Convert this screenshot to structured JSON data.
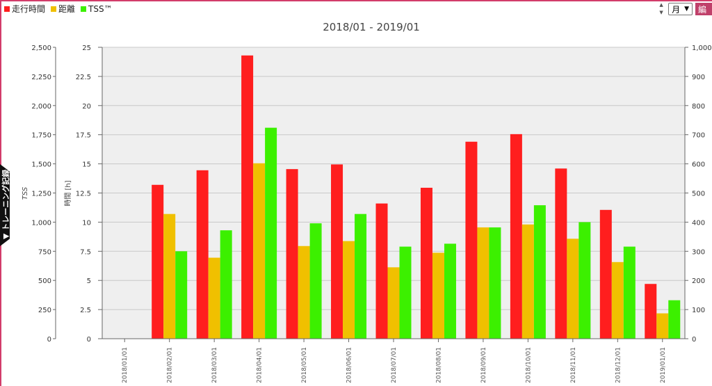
{
  "legend": [
    {
      "label": "走行時間",
      "color": "#ff1e1e"
    },
    {
      "label": "距離",
      "color": "#f0c000"
    },
    {
      "label": "TSS™",
      "color": "#3cf000"
    }
  ],
  "controls": {
    "period_select": "月",
    "edit_button_label": "編"
  },
  "side_tab": {
    "label": "▼ トレーニング記録"
  },
  "chart_data": {
    "type": "bar",
    "title": "2018/01 - 2019/01",
    "categories": [
      "2018/01/01",
      "2018/02/01",
      "2018/03/01",
      "2018/04/01",
      "2018/05/01",
      "2018/06/01",
      "2018/07/01",
      "2018/08/01",
      "2018/09/01",
      "2018/10/01",
      "2018/11/01",
      "2018/12/01",
      "2019/01/01"
    ],
    "series": [
      {
        "name": "走行時間",
        "axis": "time",
        "color": "#ff1e1e",
        "values": [
          0,
          13.2,
          14.45,
          24.3,
          14.55,
          14.95,
          11.6,
          12.95,
          16.9,
          17.55,
          14.6,
          11.05,
          4.7
        ]
      },
      {
        "name": "距離",
        "axis": "right",
        "color": "#f0c000",
        "values": [
          0,
          428,
          278,
          602,
          318,
          335,
          245,
          295,
          382,
          392,
          343,
          263,
          87
        ]
      },
      {
        "name": "TSS™",
        "axis": "tss",
        "color": "#3cf000",
        "values": [
          0,
          750,
          930,
          1810,
          990,
          1070,
          790,
          815,
          955,
          1145,
          1000,
          790,
          330
        ]
      }
    ],
    "axes": {
      "tss": {
        "label": "TSS",
        "ticks": [
          "0",
          "250",
          "500",
          "750",
          "1,000",
          "1,250",
          "1,500",
          "1,750",
          "2,000",
          "2,250",
          "2,500"
        ],
        "range": [
          0,
          2500
        ]
      },
      "time": {
        "label": "時間 [h]",
        "ticks": [
          "0",
          "2.5",
          "5",
          "7.5",
          "10",
          "12.5",
          "15",
          "17.5",
          "20",
          "22.5",
          "25"
        ],
        "range": [
          0,
          25
        ]
      },
      "right": {
        "label": "",
        "ticks": [
          "0",
          "100",
          "200",
          "300",
          "400",
          "500",
          "600",
          "700",
          "800",
          "900",
          "1,000"
        ],
        "range": [
          0,
          1000
        ]
      }
    },
    "grid": true,
    "legend_position": "top-left"
  }
}
